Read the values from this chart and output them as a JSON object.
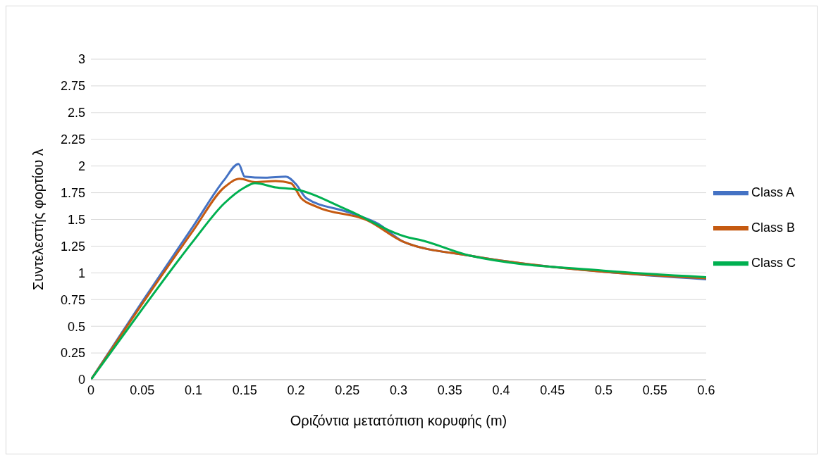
{
  "chart_data": {
    "type": "line",
    "xlabel": "Οριζόντια μετατόπιση κορυφής (m)",
    "ylabel": "Συντελεστής φορτίου λ",
    "xlim": [
      0,
      0.6
    ],
    "xticks": [
      0,
      0.05,
      0.1,
      0.15,
      0.2,
      0.25,
      0.3,
      0.35,
      0.4,
      0.45,
      0.5,
      0.55,
      0.6
    ],
    "ylim": [
      0,
      3
    ],
    "yticks": [
      0,
      0.25,
      0.5,
      0.75,
      1,
      1.25,
      1.5,
      1.75,
      2,
      2.25,
      2.5,
      2.75,
      3
    ],
    "grid": "y",
    "legend": "right",
    "marker": "none",
    "line_style": "solid",
    "series": [
      {
        "name": "Class A",
        "color": "#4472c4",
        "x": [
          0,
          0.05,
          0.1,
          0.13,
          0.144,
          0.15,
          0.17,
          0.19,
          0.2,
          0.21,
          0.25,
          0.28,
          0.305,
          0.37,
          0.5,
          0.6
        ],
        "values": [
          0,
          0.73,
          1.44,
          1.87,
          2.02,
          1.9,
          1.89,
          1.9,
          1.83,
          1.7,
          1.57,
          1.46,
          1.29,
          1.16,
          1.01,
          0.94
        ]
      },
      {
        "name": "Class B",
        "color": "#c55a11",
        "x": [
          0,
          0.05,
          0.1,
          0.13,
          0.145,
          0.16,
          0.18,
          0.195,
          0.205,
          0.22,
          0.27,
          0.305,
          0.37,
          0.5,
          0.6
        ],
        "values": [
          0,
          0.71,
          1.4,
          1.8,
          1.88,
          1.85,
          1.86,
          1.84,
          1.7,
          1.62,
          1.49,
          1.29,
          1.16,
          1.01,
          0.95
        ]
      },
      {
        "name": "Class C",
        "color": "#00b050",
        "x": [
          0,
          0.05,
          0.1,
          0.13,
          0.15,
          0.16,
          0.18,
          0.2,
          0.25,
          0.31,
          0.32,
          0.37,
          0.5,
          0.6
        ],
        "values": [
          0,
          0.66,
          1.3,
          1.65,
          1.8,
          1.84,
          1.8,
          1.78,
          1.59,
          1.33,
          1.31,
          1.16,
          1.02,
          0.96
        ]
      }
    ]
  }
}
